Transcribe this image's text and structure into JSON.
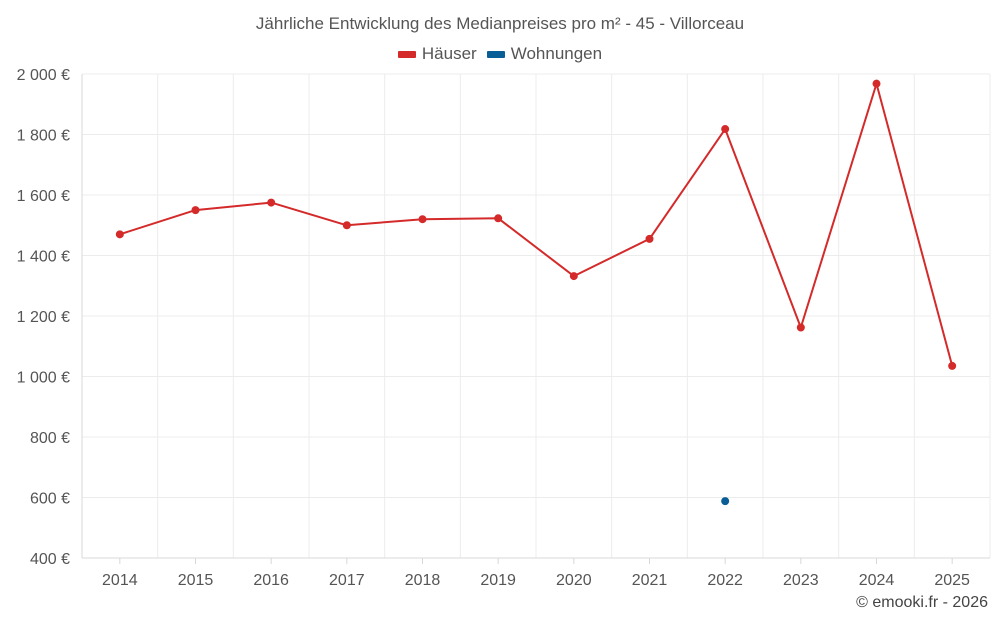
{
  "chart_data": {
    "type": "line",
    "title": "Jährliche Entwicklung des Medianpreises pro m² - 45 - Villorceau",
    "categories": [
      "2014",
      "2015",
      "2016",
      "2017",
      "2018",
      "2019",
      "2020",
      "2021",
      "2022",
      "2023",
      "2024",
      "2025"
    ],
    "series": [
      {
        "name": "Häuser",
        "color": "#d42a2a",
        "values": [
          1470,
          1550,
          1575,
          1500,
          1520,
          1523,
          1332,
          1455,
          1818,
          1162,
          1968,
          1035
        ]
      },
      {
        "name": "Wohnungen",
        "color": "#0a5e96",
        "values": [
          null,
          null,
          null,
          null,
          null,
          null,
          null,
          null,
          588,
          null,
          null,
          null
        ]
      }
    ],
    "ylim": [
      400,
      2000
    ],
    "yticks": [
      400,
      600,
      800,
      1000,
      1200,
      1400,
      1600,
      1800,
      2000
    ],
    "ytick_labels": [
      "400 €",
      "600 €",
      "800 €",
      "1 000 €",
      "1 200 €",
      "1 400 €",
      "1 600 €",
      "1 800 €",
      "2 000 €"
    ],
    "grid": true,
    "xlabel": "",
    "ylabel": ""
  },
  "legend": {
    "items": [
      {
        "label": "Häuser",
        "color": "#d42a2a"
      },
      {
        "label": "Wohnungen",
        "color": "#0a5e96"
      }
    ]
  },
  "credit": "© emooki.fr - 2026"
}
